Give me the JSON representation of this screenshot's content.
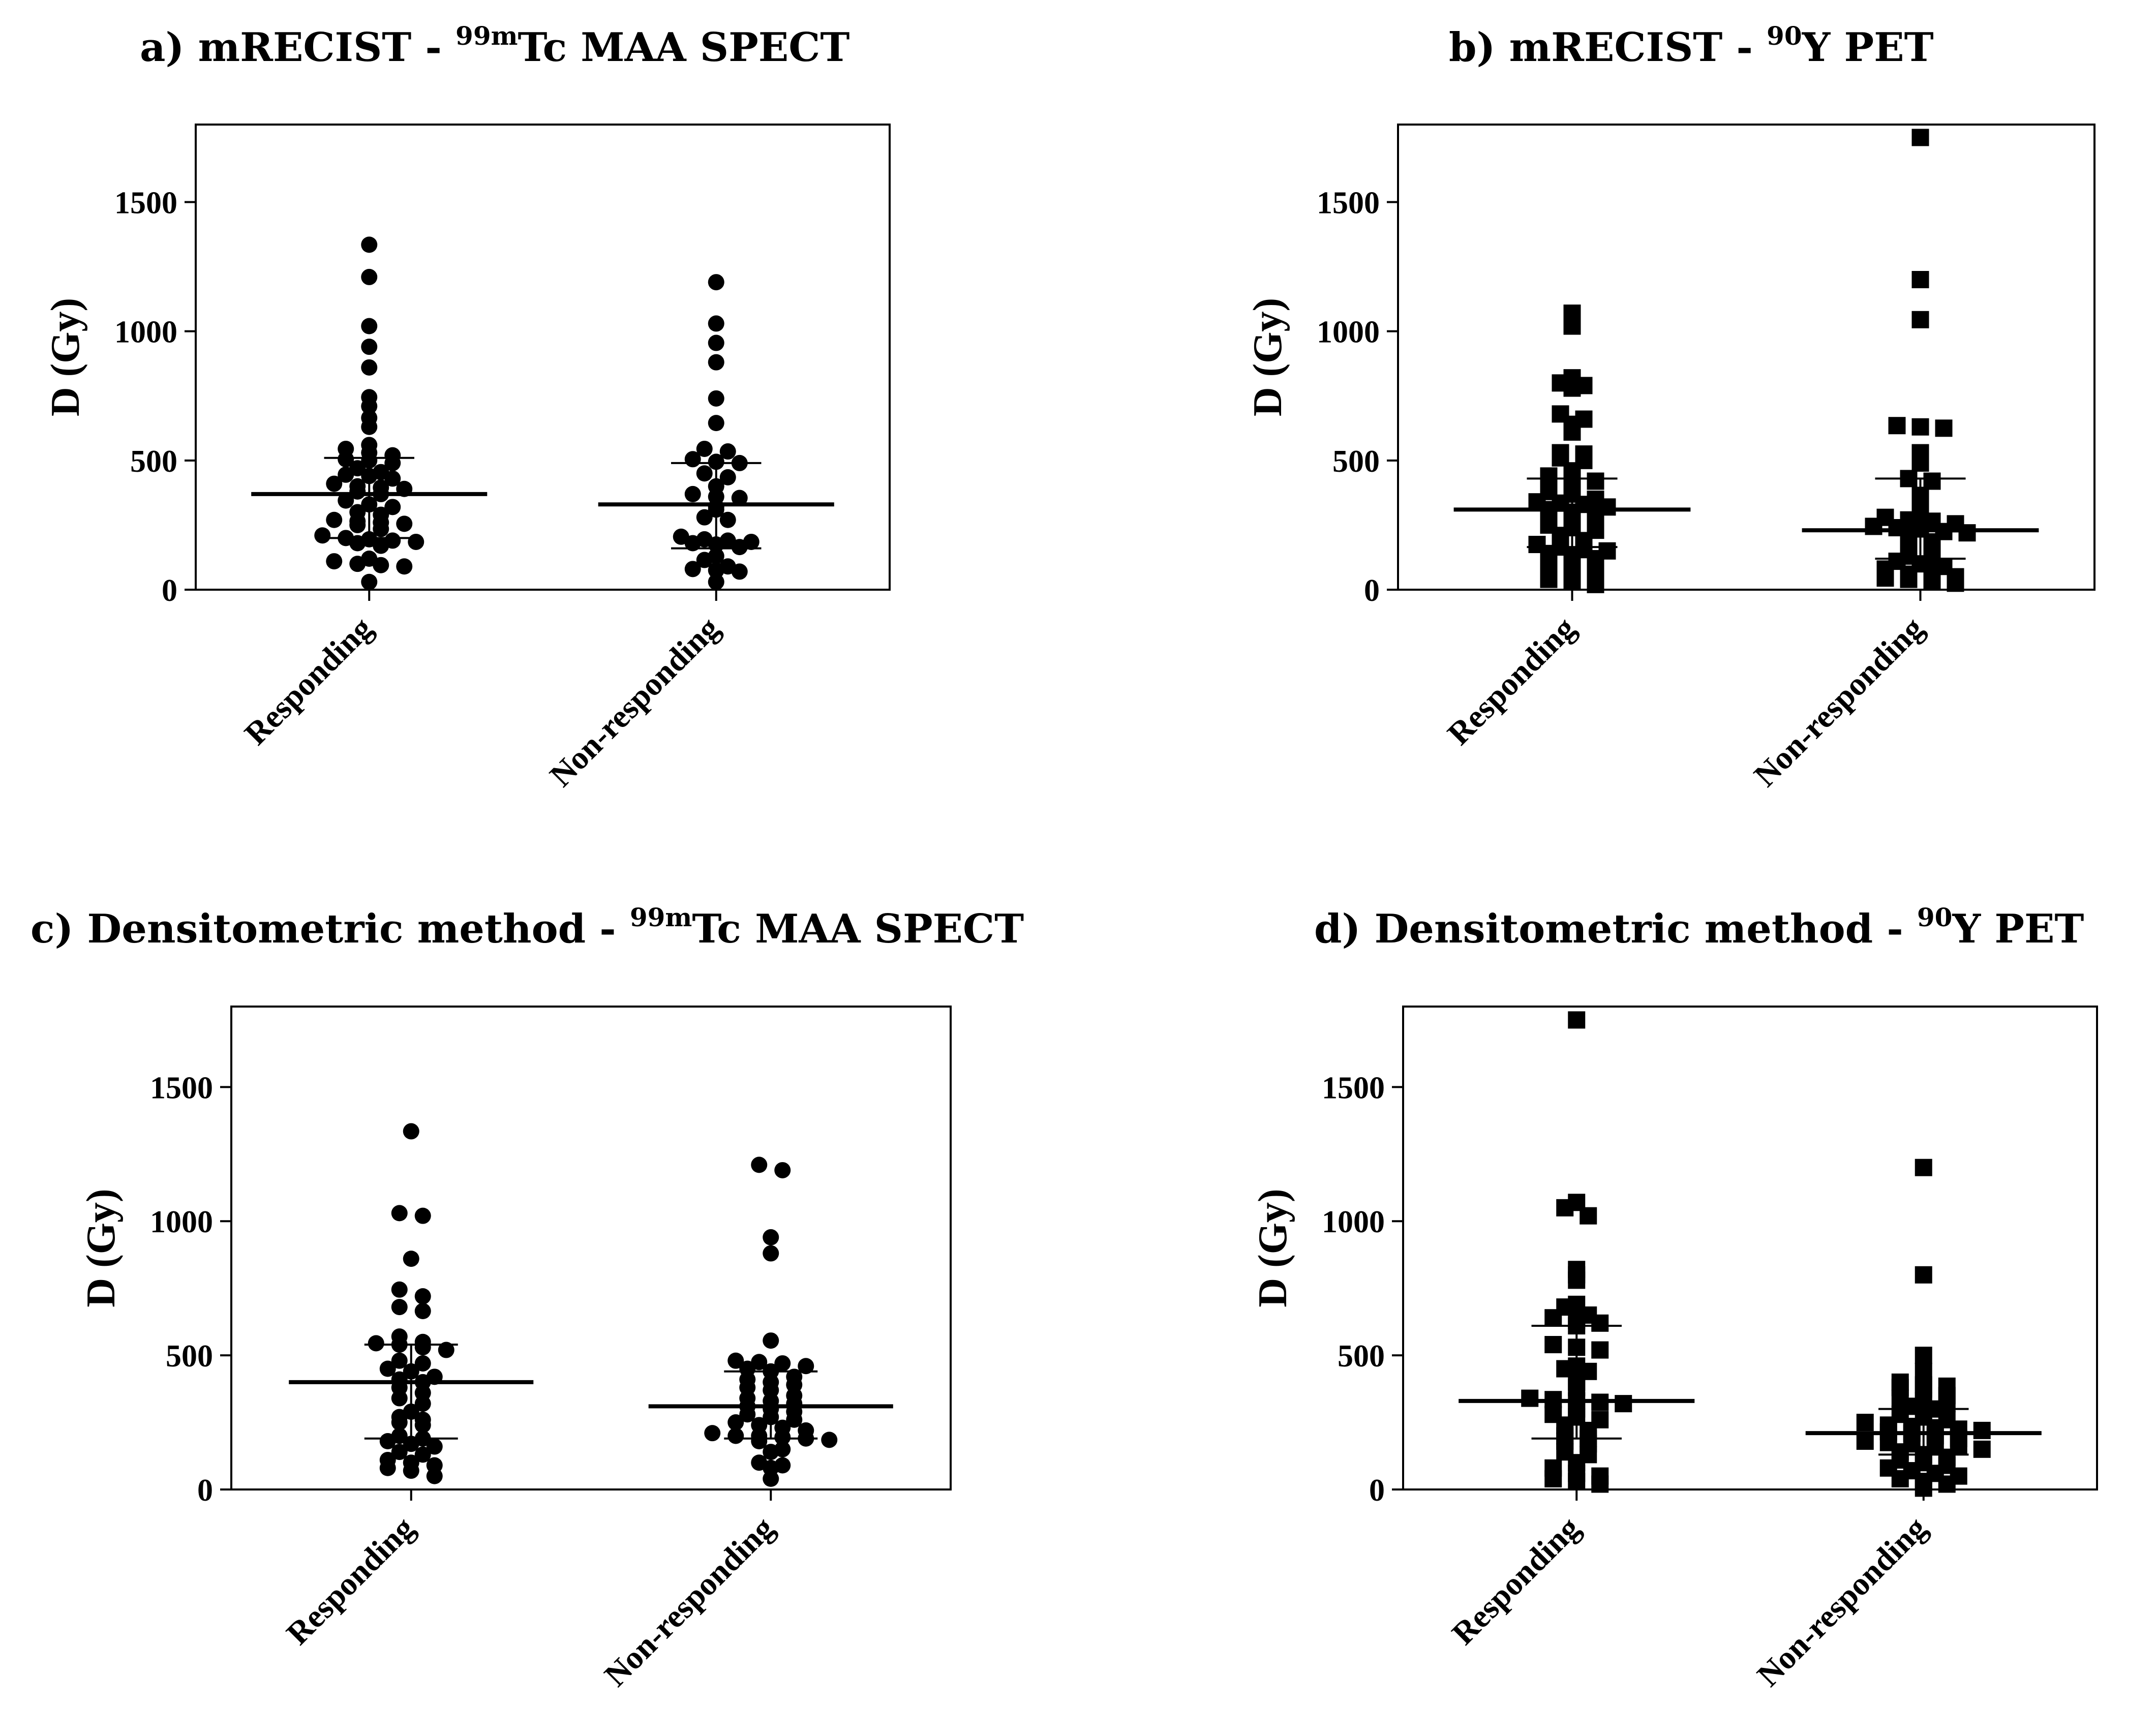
{
  "figure": {
    "panels": [
      {
        "id": "a",
        "title": {
          "prefix": "a) mRECIST - ",
          "sup": "99m",
          "suffix": "Tc MAA SPECT"
        }
      },
      {
        "id": "b",
        "title": {
          "prefix": "b) mRECIST - ",
          "sup": "90",
          "suffix": "Y PET"
        }
      },
      {
        "id": "c",
        "title": {
          "prefix": "c) Densitometric method - ",
          "sup": "99m",
          "suffix": "Tc MAA SPECT"
        }
      },
      {
        "id": "d",
        "title": {
          "prefix": "d) Densitometric method - ",
          "sup": "90",
          "suffix": "Y PET"
        }
      }
    ]
  },
  "chart_data": [
    {
      "panel": "a",
      "type": "scatter",
      "subtype": "dot plot with median and interquartile range",
      "title": "a) mRECIST - 99mTc MAA SPECT",
      "xlabel": "",
      "ylabel": "D (Gy)",
      "ylim": [
        0,
        1800
      ],
      "yticks": [
        0,
        500,
        1000,
        1500
      ],
      "categories": [
        "Responding",
        "Non-responding"
      ],
      "marker": "circle",
      "series": [
        {
          "name": "Responding",
          "median": 370,
          "q1": 200,
          "q3": 510,
          "values": [
            1335,
            1210,
            1020,
            940,
            860,
            745,
            710,
            665,
            630,
            560,
            545,
            530,
            520,
            505,
            500,
            490,
            470,
            455,
            445,
            440,
            430,
            410,
            400,
            395,
            390,
            380,
            370,
            345,
            330,
            320,
            300,
            290,
            270,
            265,
            260,
            255,
            250,
            235,
            210,
            200,
            195,
            190,
            185,
            180,
            170,
            120,
            110,
            100,
            95,
            90,
            30
          ]
        },
        {
          "name": "Non-responding",
          "median": 330,
          "q1": 160,
          "q3": 490,
          "values": [
            1190,
            1030,
            955,
            880,
            740,
            645,
            545,
            535,
            505,
            495,
            490,
            450,
            435,
            400,
            370,
            360,
            355,
            320,
            310,
            280,
            270,
            205,
            195,
            190,
            185,
            180,
            175,
            165,
            130,
            115,
            90,
            80,
            75,
            70,
            30
          ]
        }
      ]
    },
    {
      "panel": "b",
      "type": "scatter",
      "subtype": "dot plot with median and interquartile range",
      "title": "b) mRECIST - 90Y PET",
      "xlabel": "",
      "ylabel": "D (Gy)",
      "ylim": [
        0,
        1800
      ],
      "yticks": [
        0,
        500,
        1000,
        1500
      ],
      "categories": [
        "Responding",
        "Non-responding"
      ],
      "marker": "square",
      "series": [
        {
          "name": "Responding",
          "median": 310,
          "q1": 165,
          "q3": 430,
          "values": [
            1070,
            1020,
            820,
            800,
            790,
            780,
            680,
            660,
            640,
            610,
            530,
            525,
            510,
            500,
            460,
            440,
            430,
            420,
            400,
            380,
            370,
            350,
            340,
            335,
            330,
            320,
            310,
            300,
            290,
            280,
            270,
            260,
            250,
            240,
            230,
            210,
            190,
            175,
            165,
            155,
            150,
            140,
            130,
            120,
            110,
            100,
            90,
            75,
            60,
            50,
            40,
            35,
            20
          ]
        },
        {
          "name": "Non-responding",
          "median": 230,
          "q1": 120,
          "q3": 430,
          "values": [
            1750,
            1200,
            1045,
            635,
            630,
            625,
            530,
            490,
            430,
            420,
            365,
            345,
            300,
            280,
            270,
            265,
            255,
            245,
            240,
            235,
            225,
            220,
            200,
            185,
            175,
            170,
            130,
            120,
            110,
            100,
            90,
            80,
            60,
            55,
            50,
            45,
            40,
            30,
            25
          ]
        }
      ]
    },
    {
      "panel": "c",
      "type": "scatter",
      "subtype": "dot plot with median and interquartile range",
      "title": "c) Densitometric method - 99mTc MAA SPECT",
      "xlabel": "",
      "ylabel": "D (Gy)",
      "ylim": [
        0,
        1800
      ],
      "yticks": [
        0,
        500,
        1000,
        1500
      ],
      "categories": [
        "Responding",
        "Non-responding"
      ],
      "marker": "circle",
      "series": [
        {
          "name": "Responding",
          "median": 400,
          "q1": 190,
          "q3": 540,
          "values": [
            1335,
            1030,
            1020,
            860,
            745,
            720,
            680,
            665,
            570,
            550,
            545,
            540,
            530,
            520,
            480,
            470,
            450,
            440,
            420,
            410,
            400,
            380,
            360,
            340,
            320,
            290,
            270,
            260,
            250,
            240,
            200,
            190,
            180,
            170,
            160,
            140,
            130,
            110,
            100,
            90,
            80,
            70,
            50
          ]
        },
        {
          "name": "Non-responding",
          "median": 310,
          "q1": 190,
          "q3": 440,
          "values": [
            1210,
            1190,
            940,
            880,
            555,
            480,
            475,
            470,
            460,
            450,
            440,
            420,
            410,
            400,
            390,
            380,
            370,
            350,
            340,
            330,
            320,
            310,
            300,
            290,
            280,
            270,
            260,
            250,
            240,
            230,
            220,
            210,
            200,
            200,
            195,
            190,
            185,
            180,
            150,
            140,
            100,
            90,
            80,
            40
          ]
        }
      ]
    },
    {
      "panel": "d",
      "type": "scatter",
      "subtype": "dot plot with median and interquartile range",
      "title": "d) Densitometric method - 90Y PET",
      "xlabel": "",
      "ylabel": "D (Gy)",
      "ylim": [
        0,
        1800
      ],
      "yticks": [
        0,
        500,
        1000,
        1500
      ],
      "categories": [
        "Responding",
        "Non-responding"
      ],
      "marker": "square",
      "series": [
        {
          "name": "Responding",
          "median": 330,
          "q1": 190,
          "q3": 610,
          "values": [
            1750,
            1070,
            1050,
            1020,
            820,
            800,
            780,
            690,
            680,
            650,
            640,
            630,
            620,
            610,
            540,
            530,
            520,
            460,
            450,
            440,
            400,
            380,
            340,
            335,
            330,
            325,
            320,
            300,
            280,
            270,
            260,
            240,
            220,
            200,
            190,
            180,
            170,
            140,
            130,
            100,
            80,
            60,
            50,
            40,
            30,
            20
          ]
        },
        {
          "name": "Non-responding",
          "median": 210,
          "q1": 130,
          "q3": 300,
          "values": [
            1200,
            800,
            500,
            440,
            400,
            390,
            385,
            380,
            375,
            350,
            340,
            330,
            320,
            310,
            300,
            280,
            270,
            260,
            250,
            240,
            235,
            230,
            225,
            220,
            215,
            210,
            200,
            190,
            180,
            175,
            170,
            165,
            160,
            150,
            140,
            130,
            120,
            110,
            100,
            90,
            80,
            70,
            60,
            50,
            40,
            30,
            20,
            5
          ]
        }
      ]
    }
  ]
}
